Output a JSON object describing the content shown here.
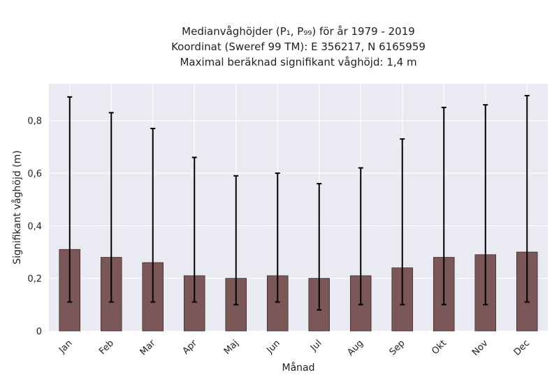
{
  "chart_data": {
    "type": "bar",
    "title_lines": [
      "Medianvåghöjder (P₁, P₉₉) för år 1979 - 2019",
      "Koordinat (Sweref 99 TM): E 356217, N 6165959",
      "Maximal beräknad signifikant våghöjd: 1,4 m"
    ],
    "xlabel": "Månad",
    "ylabel": "Signifikant våghöjd (m)",
    "categories": [
      "Jan",
      "Feb",
      "Mar",
      "Apr",
      "Maj",
      "Jun",
      "Jul",
      "Aug",
      "Sep",
      "Okt",
      "Nov",
      "Dec"
    ],
    "values": [
      0.31,
      0.28,
      0.26,
      0.21,
      0.2,
      0.21,
      0.2,
      0.21,
      0.24,
      0.28,
      0.29,
      0.3
    ],
    "error_low": [
      0.11,
      0.11,
      0.11,
      0.11,
      0.1,
      0.11,
      0.08,
      0.1,
      0.1,
      0.1,
      0.1,
      0.11
    ],
    "error_high": [
      0.89,
      0.83,
      0.77,
      0.66,
      0.59,
      0.6,
      0.56,
      0.62,
      0.73,
      0.85,
      0.86,
      0.895
    ],
    "ylim": [
      0,
      0.94
    ],
    "yticks": [
      0,
      0.2,
      0.4,
      0.6,
      0.8
    ],
    "ytick_labels": [
      "0",
      "0,2",
      "0,4",
      "0,6",
      "0,8"
    ],
    "grid": true,
    "colors": {
      "bar": "#7b5758",
      "bar_edge": "#3d2b2c",
      "plot_bg": "#eaeaf2",
      "grid": "#ffffff",
      "error": "#000000"
    }
  }
}
